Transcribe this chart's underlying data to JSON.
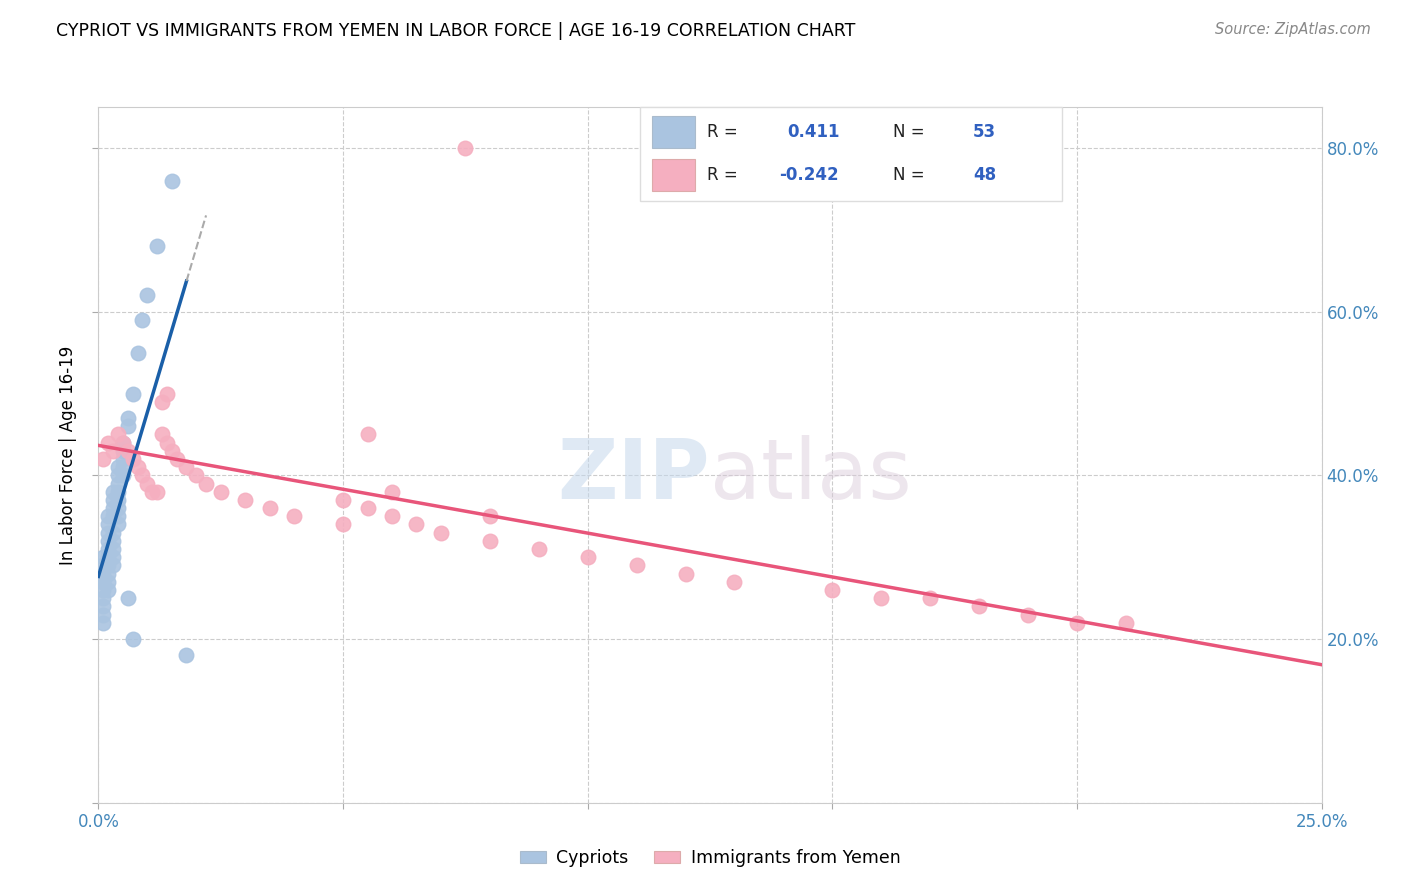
{
  "title": "CYPRIOT VS IMMIGRANTS FROM YEMEN IN LABOR FORCE | AGE 16-19 CORRELATION CHART",
  "source": "Source: ZipAtlas.com",
  "ylabel": "In Labor Force | Age 16-19",
  "xmin": 0.0,
  "xmax": 0.25,
  "ymin": 0.0,
  "ymax": 0.85,
  "watermark": "ZIPatlas",
  "blue_color": "#aac4e0",
  "pink_color": "#f5afc0",
  "line_blue": "#1a5fa8",
  "line_pink": "#e8557a",
  "legend_text_color": "#3060c0",
  "cypriot_x": [
    0.001,
    0.001,
    0.001,
    0.001,
    0.001,
    0.001,
    0.001,
    0.001,
    0.001,
    0.001,
    0.002,
    0.002,
    0.002,
    0.002,
    0.002,
    0.002,
    0.002,
    0.002,
    0.002,
    0.002,
    0.003,
    0.003,
    0.003,
    0.003,
    0.003,
    0.003,
    0.003,
    0.003,
    0.003,
    0.004,
    0.004,
    0.004,
    0.004,
    0.004,
    0.004,
    0.004,
    0.004,
    0.005,
    0.005,
    0.005,
    0.005,
    0.005,
    0.006,
    0.006,
    0.006,
    0.007,
    0.007,
    0.008,
    0.009,
    0.01,
    0.012,
    0.015,
    0.018
  ],
  "cypriot_y": [
    0.3,
    0.29,
    0.28,
    0.27,
    0.27,
    0.26,
    0.25,
    0.24,
    0.23,
    0.22,
    0.35,
    0.34,
    0.33,
    0.32,
    0.31,
    0.3,
    0.29,
    0.28,
    0.27,
    0.26,
    0.38,
    0.37,
    0.36,
    0.35,
    0.33,
    0.32,
    0.31,
    0.3,
    0.29,
    0.41,
    0.4,
    0.39,
    0.38,
    0.37,
    0.36,
    0.35,
    0.34,
    0.44,
    0.43,
    0.42,
    0.41,
    0.4,
    0.47,
    0.46,
    0.25,
    0.5,
    0.2,
    0.55,
    0.59,
    0.62,
    0.68,
    0.76,
    0.18
  ],
  "yemen_x": [
    0.001,
    0.002,
    0.003,
    0.004,
    0.005,
    0.006,
    0.007,
    0.008,
    0.009,
    0.01,
    0.011,
    0.012,
    0.013,
    0.014,
    0.015,
    0.016,
    0.018,
    0.02,
    0.022,
    0.025,
    0.03,
    0.035,
    0.04,
    0.05,
    0.055,
    0.06,
    0.07,
    0.08,
    0.09,
    0.1,
    0.11,
    0.12,
    0.13,
    0.15,
    0.16,
    0.17,
    0.18,
    0.19,
    0.2,
    0.21,
    0.013,
    0.014,
    0.05,
    0.055,
    0.06,
    0.065,
    0.075,
    0.08
  ],
  "yemen_y": [
    0.42,
    0.44,
    0.43,
    0.45,
    0.44,
    0.43,
    0.42,
    0.41,
    0.4,
    0.39,
    0.38,
    0.38,
    0.45,
    0.44,
    0.43,
    0.42,
    0.41,
    0.4,
    0.39,
    0.38,
    0.37,
    0.36,
    0.35,
    0.34,
    0.45,
    0.38,
    0.33,
    0.32,
    0.31,
    0.3,
    0.29,
    0.28,
    0.27,
    0.26,
    0.25,
    0.25,
    0.24,
    0.23,
    0.22,
    0.22,
    0.49,
    0.5,
    0.37,
    0.36,
    0.35,
    0.34,
    0.8,
    0.35
  ]
}
